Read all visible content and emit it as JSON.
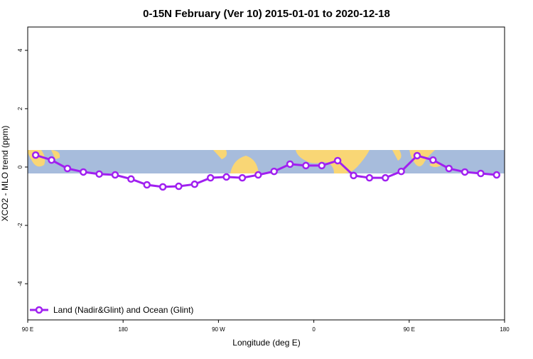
{
  "chart_data": {
    "type": "line",
    "title": "0-15N February (Ver 10)   2015-01-01 to 2020-12-18",
    "x_label": "Longitude (deg E)",
    "y_label": "XCO2 - MLO trend (ppm)",
    "x": [
      97.5,
      112.5,
      127.5,
      142.5,
      157.5,
      172.5,
      187.5,
      202.5,
      217.5,
      232.5,
      247.5,
      262.5,
      277.5,
      292.5,
      307.5,
      322.5,
      337.5,
      352.5,
      367.5,
      382.5,
      397.5,
      412.5,
      427.5,
      442.5,
      457.5,
      472.5,
      487.5,
      502.5,
      517.5,
      532.5
    ],
    "series": [
      {
        "name": "Land (Nadir&Glint) and Ocean (Glint)",
        "color": "#a020f0",
        "values": [
          0.41,
          0.24,
          -0.05,
          -0.17,
          -0.24,
          -0.27,
          -0.41,
          -0.61,
          -0.68,
          -0.66,
          -0.59,
          -0.37,
          -0.34,
          -0.37,
          -0.27,
          -0.15,
          0.1,
          0.05,
          0.05,
          0.22,
          -0.29,
          -0.37,
          -0.37,
          -0.15,
          0.39,
          0.24,
          -0.05,
          -0.17,
          -0.22,
          -0.27
        ]
      }
    ],
    "xlim": [
      90,
      540
    ],
    "xticks": [
      {
        "value": 90,
        "label": "90 E"
      },
      {
        "value": 180,
        "label": "180"
      },
      {
        "value": 270,
        "label": "90 W"
      },
      {
        "value": 360,
        "label": "0"
      },
      {
        "value": 450,
        "label": "90 E"
      },
      {
        "value": 540,
        "label": "180"
      }
    ],
    "ylim": [
      -5.24,
      4.8
    ],
    "yticks": [
      -4,
      -2,
      0,
      2,
      4
    ],
    "legend": "bottom-left"
  }
}
